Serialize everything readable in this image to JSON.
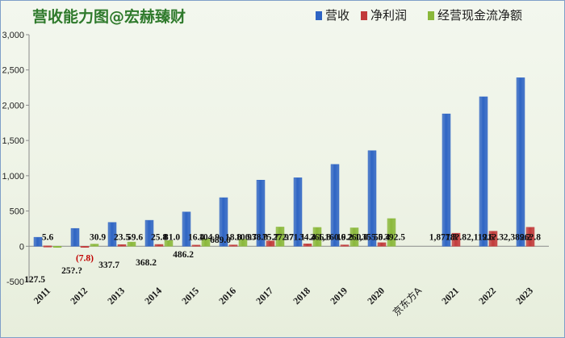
{
  "chart_data": {
    "type": "bar",
    "title": "营收能力图@宏赫臻财",
    "categories": [
      "2011",
      "2012",
      "2013",
      "2014",
      "2015",
      "2016",
      "2017",
      "2018",
      "2019",
      "2020",
      "京东方A",
      "2021",
      "2022",
      "2023"
    ],
    "series": [
      {
        "name": "营收",
        "color": "#2e64c4",
        "values": [
          127.5,
          253.0,
          337.7,
          368.2,
          486.2,
          689.0,
          938.0,
          971.1,
          1160.6,
          1355.5,
          null,
          1877.3,
          2119.6,
          2389.2
        ],
        "labels": [
          "127.5",
          "25?.?",
          "337.7",
          "368.2",
          "486.2",
          "689.0",
          "938.0",
          "971.1",
          "1,160.6",
          "1,355.5",
          "",
          "1,877.3",
          "2,119.6",
          "2,389.2"
        ]
      },
      {
        "name": "净利润",
        "color": "#c23a3a",
        "values": [
          5.6,
          -7.8,
          23.5,
          25.8,
          16.4,
          18.8,
          75.7,
          34.4,
          19.2,
          50.4,
          null,
          184.8,
          213.3,
          268.8
        ],
        "labels": [
          "5.6",
          "(7.8)",
          "23.5",
          "25.8",
          "16.4",
          "18.8",
          "75.7",
          "34.4",
          "19.2",
          "50.4",
          "",
          "18?.8",
          "21?.3",
          "26?.8"
        ]
      },
      {
        "name": "经营现金流净额",
        "color": "#8ab83a",
        "values": [
          0,
          30.9,
          59.6,
          81.0,
          104.9,
          100.7,
          272.7,
          266.8,
          260.8,
          392.5,
          null,
          null,
          null,
          null
        ],
        "labels": [
          "",
          "30.9",
          "59.6",
          "81.0",
          "104.9",
          "100.7",
          "272.7",
          "266.8",
          "260.8",
          "392.5",
          "",
          "",
          "",
          ""
        ]
      }
    ],
    "ylim": [
      -500,
      3000
    ],
    "yticks": [
      -500,
      0,
      500,
      1000,
      1500,
      2000,
      2500,
      3000
    ],
    "ytick_labels": [
      "-500",
      "0",
      "500",
      "1,000",
      "1,500",
      "2,000",
      "2,500",
      "3,000"
    ],
    "legend_position": "top-right",
    "grid": false
  }
}
